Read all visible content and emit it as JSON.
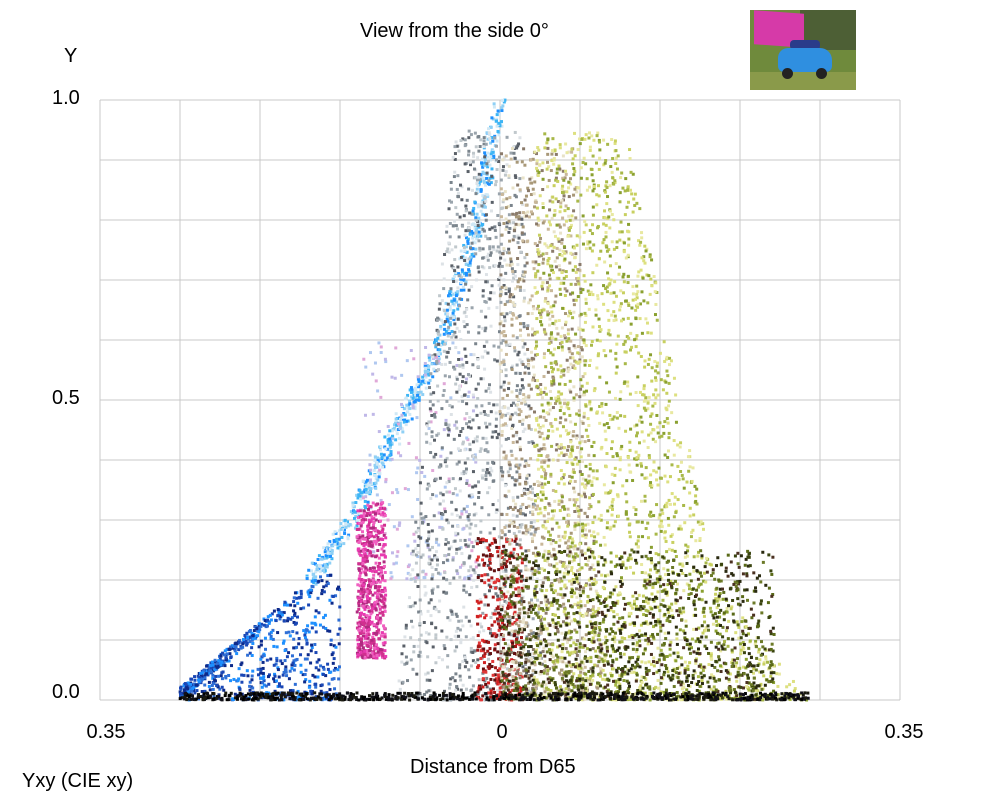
{
  "chart_data": {
    "type": "scatter",
    "title": "View from the side 0°",
    "xlabel": "Distance from D65",
    "ylabel": "Y",
    "footer": "Yxy (CIE xy)",
    "xlim": [
      -0.35,
      0.35
    ],
    "ylim": [
      0,
      1
    ],
    "x_tick_labels": [
      "0.35",
      "0",
      "0.35"
    ],
    "x_tick_values": [
      -0.35,
      0,
      0.35
    ],
    "y_tick_labels": [
      "0.0",
      "0.5",
      "1.0"
    ],
    "y_tick_values": [
      0,
      0.5,
      1.0
    ],
    "grid": true,
    "thumbnail": "blue Mini car with pink banner",
    "clusters": [
      {
        "name": "cyan-curve",
        "kind": "curve",
        "curve": [
          [
            -0.166,
            0.2
          ],
          [
            -0.13,
            0.3
          ],
          [
            -0.09,
            0.45
          ],
          [
            -0.05,
            0.6
          ],
          [
            -0.02,
            0.8
          ],
          [
            0,
            1.0
          ]
        ],
        "colors": [
          "#1e90ff",
          "#3db5f5",
          "#8fd0f5",
          "#d0e8f5"
        ],
        "n": 700
      },
      {
        "name": "blue-wedge",
        "kind": "box",
        "x": [
          -0.28,
          -0.14
        ],
        "y": [
          0,
          0.22
        ],
        "colors": [
          "#0d2a8a",
          "#1a47b5",
          "#2f6fd6",
          "#1e90ff"
        ],
        "n": 700
      },
      {
        "name": "light-lilac",
        "kind": "box",
        "x": [
          -0.12,
          -0.02
        ],
        "y": [
          0.2,
          0.6
        ],
        "colors": [
          "#c0b8e8",
          "#e0a8d8",
          "#b0c8f0"
        ],
        "n": 200
      },
      {
        "name": "magenta-band",
        "kind": "box",
        "x": [
          -0.125,
          -0.1
        ],
        "y": [
          0.07,
          0.33
        ],
        "colors": [
          "#e83ab0",
          "#d0308f",
          "#b02a80",
          "#f060c0"
        ],
        "n": 600
      },
      {
        "name": "gray-center",
        "kind": "box",
        "x": [
          -0.09,
          0.04
        ],
        "y": [
          0,
          0.95
        ],
        "colors": [
          "#9aa4ac",
          "#7a848c",
          "#c0c8cc",
          "#5a6068",
          "#dde2e6"
        ],
        "n": 1300
      },
      {
        "name": "red-column",
        "kind": "box",
        "x": [
          -0.02,
          0.02
        ],
        "y": [
          0,
          0.27
        ],
        "colors": [
          "#d02020",
          "#a01818",
          "#e03838",
          "#601010"
        ],
        "n": 350
      },
      {
        "name": "tan-region",
        "kind": "box",
        "x": [
          0,
          0.09
        ],
        "y": [
          0,
          0.92
        ],
        "colors": [
          "#c9b89a",
          "#a89878",
          "#8a7a6a",
          "#e8e2c8"
        ],
        "n": 1100
      },
      {
        "name": "yellow-green",
        "kind": "tri",
        "x": [
          0.03,
          0.27
        ],
        "y": [
          0,
          0.95
        ],
        "colors": [
          "#c8d060",
          "#a8b848",
          "#dde080",
          "#8aa030",
          "#e8e8a0"
        ],
        "n": 2000
      },
      {
        "name": "olive-bottom",
        "kind": "box",
        "x": [
          0,
          0.24
        ],
        "y": [
          0,
          0.25
        ],
        "colors": [
          "#5a6a18",
          "#3a4410",
          "#6c7a28",
          "#4a3020",
          "#2a2a10"
        ],
        "n": 1100
      },
      {
        "name": "black-floor",
        "kind": "box",
        "x": [
          -0.28,
          0.27
        ],
        "y": [
          0,
          0.012
        ],
        "colors": [
          "#000000",
          "#101018",
          "#1a1a10"
        ],
        "n": 700
      }
    ]
  }
}
